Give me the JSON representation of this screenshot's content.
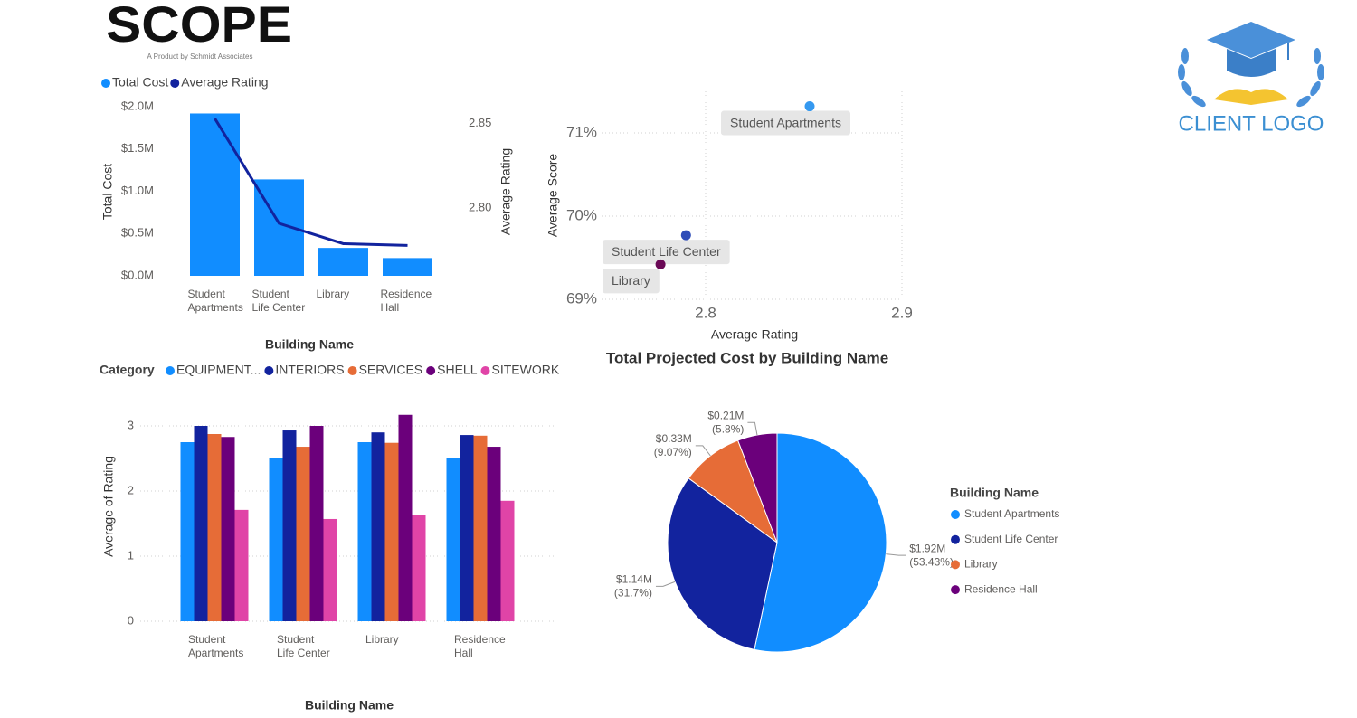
{
  "header": {
    "logo": "SCOPE",
    "tagline": "A Product by Schmidt Associates",
    "client_logo": "CLIENT LOGO"
  },
  "chart_data": [
    {
      "type": "combo",
      "categories": [
        "Student Apartments",
        "Student Life Center",
        "Library",
        "Residence Hall"
      ],
      "x_label": "Building Name",
      "y_label": "Total Cost",
      "y2_label": "Average Rating",
      "series": [
        {
          "name": "Total Cost",
          "type": "bar",
          "color": "#118dff",
          "values": [
            1920000,
            1140000,
            330000,
            210000
          ]
        },
        {
          "name": "Average Rating",
          "type": "line",
          "axis": "y2",
          "color": "#12239e",
          "values": [
            2.853,
            2.791,
            2.779,
            2.778
          ]
        }
      ],
      "ylim": [
        0,
        2000000
      ],
      "yticks": [
        {
          "value": 0,
          "label": "$0.0M"
        },
        {
          "value": 500000,
          "label": "$0.5M"
        },
        {
          "value": 1000000,
          "label": "$1.0M"
        },
        {
          "value": 1500000,
          "label": "$1.5M"
        },
        {
          "value": 2000000,
          "label": "$2.0M"
        }
      ],
      "y2lim": [
        2.76,
        2.86
      ],
      "y2ticks": [
        {
          "value": 2.8,
          "label": "2.80"
        },
        2.85
      ],
      "legend": "top-left",
      "grid": false
    },
    {
      "type": "scatter",
      "x_label": "Average Rating",
      "y_label": "Average Score",
      "categories": [
        "Student Apartments",
        "Student Life Center",
        "Library"
      ],
      "x": [
        2.853,
        2.79,
        2.777
      ],
      "values": [
        71.32,
        69.77,
        69.42
      ],
      "colors": [
        "#3599f0",
        "#2e4cb8",
        "#6b0a57"
      ],
      "xlim": [
        2.747,
        2.9
      ],
      "xticks": [
        2.8,
        2.9
      ],
      "ylim": [
        69,
        71.5
      ],
      "yticks": [
        {
          "value": 69,
          "label": "69%"
        },
        {
          "value": 70,
          "label": "70%"
        },
        {
          "value": 71,
          "label": "71%"
        }
      ],
      "grid": true
    },
    {
      "type": "grouped_bar",
      "legend_title": "Category",
      "categories": [
        "Student Apartments",
        "Student Life Center",
        "Library",
        "Residence Hall"
      ],
      "x_label": "Building Name",
      "y_label": "Average of Rating",
      "series": [
        {
          "name": "EQUIPMENT...",
          "color": "#118dff",
          "values": [
            2.75,
            2.5,
            2.75,
            2.5
          ]
        },
        {
          "name": "INTERIORS",
          "color": "#12239e",
          "values": [
            3.0,
            2.93,
            2.9,
            2.86
          ]
        },
        {
          "name": "SERVICES",
          "color": "#e66c37",
          "values": [
            2.875,
            2.68,
            2.74,
            2.85
          ]
        },
        {
          "name": "SHELL",
          "color": "#6b007b",
          "values": [
            2.83,
            3.0,
            3.17,
            2.68
          ]
        },
        {
          "name": "SITEWORK",
          "color": "#e044a7",
          "values": [
            1.71,
            1.57,
            1.63,
            1.85
          ]
        }
      ],
      "ylim": [
        0,
        3.25
      ],
      "yticks": [
        0,
        1,
        2,
        3
      ],
      "grid": true,
      "legend": "top-left"
    },
    {
      "type": "pie",
      "title": "Total Projected Cost by Building Name",
      "legend_title": "Building Name",
      "categories": [
        "Student Apartments",
        "Student Life Center",
        "Library",
        "Residence Hall"
      ],
      "values": [
        1.92,
        1.14,
        0.33,
        0.21
      ],
      "value_labels": [
        "$1.92M",
        "$1.14M",
        "$0.33M",
        "$0.21M"
      ],
      "percent_labels": [
        "(53.43%)",
        "(31.7%)",
        "(9.07%)",
        "(5.8%)"
      ],
      "colors": [
        "#118dff",
        "#12239e",
        "#e66c37",
        "#6b007b"
      ],
      "legend": "right"
    }
  ]
}
